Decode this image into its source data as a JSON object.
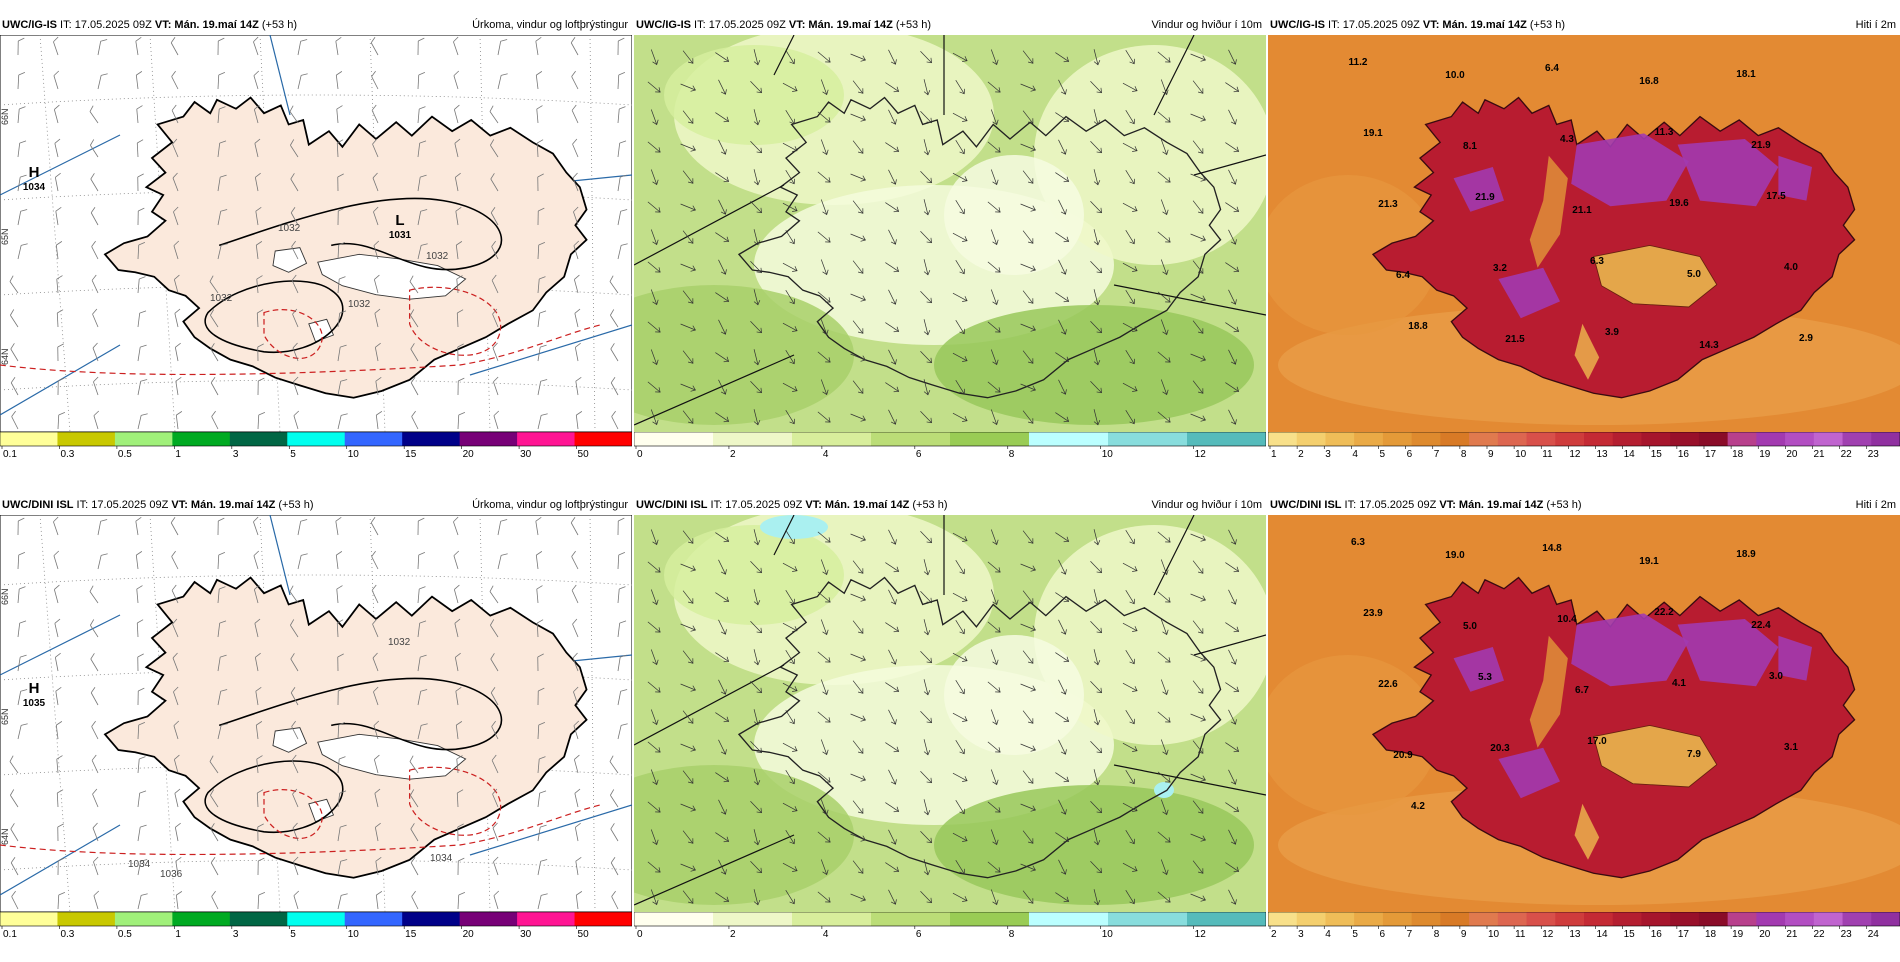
{
  "rows": [
    {
      "model_name": "UWC/IG-IS",
      "it_text": " IT: 17.05.2025 09Z ",
      "vt_bold": "VT: Mán. 19.maí 14Z",
      "lead": " (+53 h)"
    },
    {
      "model_name": "UWC/DINI ISL",
      "it_text": " IT: 17.05.2025 09Z ",
      "vt_bold": "VT: Mán. 19.maí 14Z",
      "lead": " (+53 h)"
    }
  ],
  "panel_titles": {
    "precip": "Úrkoma, vindur og loftþrýstingur",
    "wind": "Vindur og hviður í 10m",
    "temp": "Hiti í 2m"
  },
  "precip_maps": [
    {
      "pressure_labels": [
        {
          "letter": "H",
          "value": "1034"
        },
        {
          "letter": "L",
          "value": "1031"
        }
      ],
      "isobar_labels": [
        "1032",
        "1032",
        "1032",
        "1032"
      ],
      "lat_labels": [
        "66N",
        "65N",
        "64N"
      ]
    },
    {
      "pressure_labels": [
        {
          "letter": "H",
          "value": "1035"
        }
      ],
      "isobar_labels": [
        "1032",
        "1034",
        "1034",
        "1036"
      ],
      "lat_labels": [
        "66N",
        "65N",
        "64N"
      ]
    }
  ],
  "temp_maps": [
    {
      "labels": [
        "11.2",
        "10.0",
        "6.4",
        "16.8",
        "18.1",
        "19.1",
        "8.1",
        "4.3",
        "11.3",
        "21.9",
        "21.3",
        "21.9",
        "21.1",
        "19.6",
        "17.5",
        "6.4",
        "3.2",
        "6.3",
        "5.0",
        "4.0",
        "18.8",
        "21.5",
        "3.9",
        "14.3",
        "2.9"
      ]
    },
    {
      "labels": [
        "6.3",
        "19.0",
        "14.8",
        "19.1",
        "18.9",
        "23.9",
        "5.0",
        "10.4",
        "22.2",
        "22.4",
        "22.6",
        "5.3",
        "6.7",
        "4.1",
        "3.0",
        "20.9",
        "20.3",
        "17.0",
        "7.9",
        "3.1",
        "4.2"
      ]
    }
  ],
  "colorbars": {
    "precip": {
      "colors": [
        "#ffff99",
        "#c8c800",
        "#a0f07a",
        "#00aa22",
        "#006644",
        "#00ffee",
        "#3366ff",
        "#000088",
        "#770077",
        "#ff1493",
        "#ff0000"
      ],
      "ticks": [
        "0.1",
        "0.3",
        "0.5",
        "1",
        "3",
        "5",
        "10",
        "15",
        "20",
        "30",
        "50"
      ]
    },
    "wind": {
      "colors": [
        "#ffffee",
        "#eef7c8",
        "#d8ee9c",
        "#bbdd77",
        "#99cc55",
        "#bbffff",
        "#88dddd",
        "#55bbbb"
      ],
      "ticks": [
        "0",
        "2",
        "4",
        "6",
        "8",
        "10",
        "12"
      ]
    },
    "temp_top": {
      "colors": [
        "#f8e08a",
        "#f4cf6e",
        "#efbd58",
        "#eaaa46",
        "#e49a38",
        "#de8a2e",
        "#d87a26",
        "#e07a4e",
        "#dd6650",
        "#d8504a",
        "#cf3c3c",
        "#c42a34",
        "#b41e30",
        "#a6152c",
        "#98102a",
        "#8a0c28",
        "#b8408c",
        "#a23ab0",
        "#b24ec2",
        "#c064cf",
        "#a040b0",
        "#9030a0"
      ],
      "ticks": [
        "1",
        "2",
        "3",
        "4",
        "5",
        "6",
        "7",
        "8",
        "9",
        "10",
        "11",
        "12",
        "13",
        "14",
        "15",
        "16",
        "17",
        "18",
        "19",
        "20",
        "21",
        "22",
        "23"
      ]
    },
    "temp_bottom": {
      "colors": [
        "#f8e08a",
        "#f4cf6e",
        "#efbd58",
        "#eaaa46",
        "#e49a38",
        "#de8a2e",
        "#d87a26",
        "#e07a4e",
        "#dd6650",
        "#d8504a",
        "#cf3c3c",
        "#c42a34",
        "#b41e30",
        "#a6152c",
        "#98102a",
        "#8a0c28",
        "#b8408c",
        "#a23ab0",
        "#b24ec2",
        "#c064cf",
        "#a040b0",
        "#9030a0"
      ],
      "ticks": [
        "2",
        "3",
        "4",
        "5",
        "6",
        "7",
        "8",
        "9",
        "10",
        "11",
        "12",
        "13",
        "14",
        "15",
        "16",
        "17",
        "18",
        "19",
        "20",
        "21",
        "22",
        "23",
        "24"
      ]
    }
  },
  "colors": {
    "land_precip": "#fbe9dc",
    "wind_base": "#c2df8a",
    "temp_ocean": "#e38a33"
  }
}
